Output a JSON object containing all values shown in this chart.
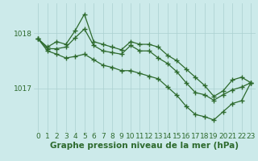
{
  "line1": [
    1017.9,
    1017.75,
    1017.85,
    1017.8,
    1018.05,
    1018.35,
    1017.85,
    1017.8,
    1017.75,
    1017.7,
    1017.85,
    1017.8,
    1017.8,
    1017.75,
    1017.6,
    1017.5,
    1017.35,
    1017.2,
    1017.05,
    1016.85,
    1016.95,
    1017.15,
    1017.2,
    1017.1
  ],
  "line2": [
    1017.9,
    1017.72,
    1017.72,
    1017.75,
    1017.92,
    1018.08,
    1017.78,
    1017.68,
    1017.65,
    1017.62,
    1017.78,
    1017.68,
    1017.68,
    1017.55,
    1017.45,
    1017.3,
    1017.1,
    1016.92,
    1016.88,
    1016.78,
    1016.88,
    1016.97,
    1017.02,
    1017.1
  ],
  "line3": [
    1017.9,
    1017.68,
    1017.62,
    1017.55,
    1017.58,
    1017.62,
    1017.52,
    1017.42,
    1017.38,
    1017.32,
    1017.32,
    1017.27,
    1017.22,
    1017.17,
    1017.02,
    1016.87,
    1016.67,
    1016.52,
    1016.48,
    1016.42,
    1016.57,
    1016.72,
    1016.77,
    1017.1
  ],
  "x": [
    0,
    1,
    2,
    3,
    4,
    5,
    6,
    7,
    8,
    9,
    10,
    11,
    12,
    13,
    14,
    15,
    16,
    17,
    18,
    19,
    20,
    21,
    22,
    23
  ],
  "yticks": [
    1017.0,
    1018.0
  ],
  "ylim": [
    1016.2,
    1018.55
  ],
  "xlim": [
    -0.5,
    23.5
  ],
  "line_color": "#2d6a2d",
  "bg_color": "#cceaea",
  "grid_color": "#aad0d0",
  "xlabel": "Graphe pression niveau de la mer (hPa)",
  "xlabel_fontsize": 7.5,
  "tick_fontsize": 6.5,
  "marker": "+",
  "markersize": 4,
  "linewidth": 0.9
}
